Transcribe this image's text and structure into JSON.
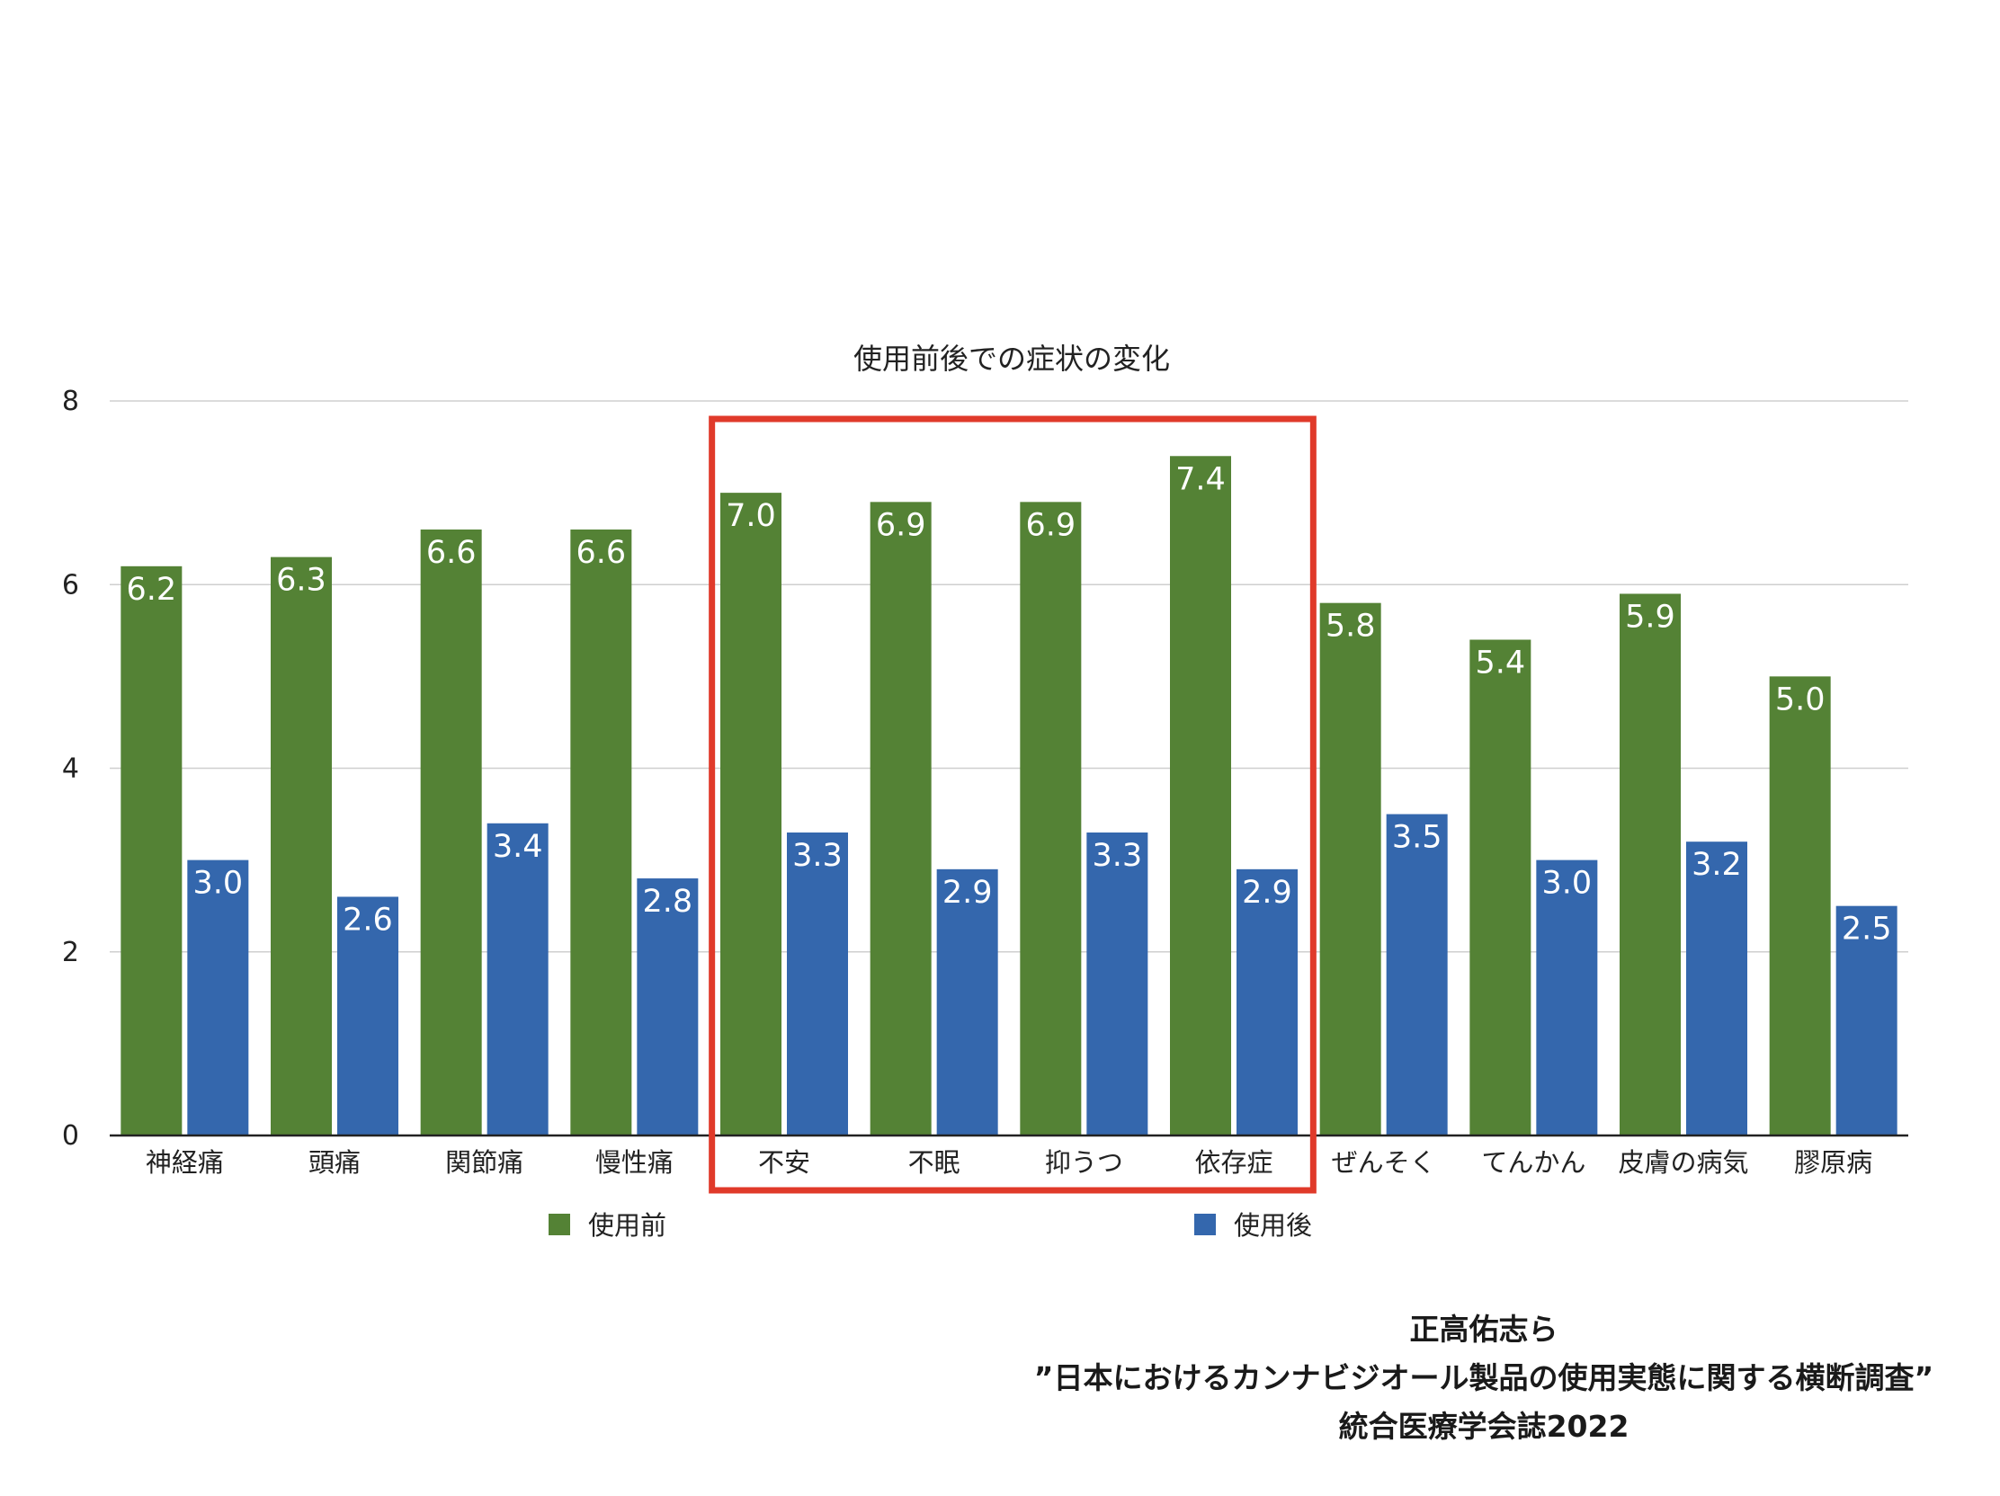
{
  "chart_data": {
    "type": "bar",
    "title": "使用前後での症状の変化",
    "categories": [
      "神経痛",
      "頭痛",
      "関節痛",
      "慢性痛",
      "不安",
      "不眠",
      "抑うつ",
      "依存症",
      "ぜんそく",
      "てんかん",
      "皮膚の病気",
      "膠原病"
    ],
    "series": [
      {
        "name": "使用前",
        "color": "#548235",
        "values": [
          6.2,
          6.3,
          6.6,
          6.6,
          7.0,
          6.9,
          6.9,
          7.4,
          5.8,
          5.4,
          5.9,
          5.0
        ],
        "labels": [
          "6.2",
          "6.3",
          "6.6",
          "6.6",
          "7.0",
          "6.9",
          "6.9",
          "7.4",
          "5.8",
          "5.4",
          "5.9",
          "5.0"
        ]
      },
      {
        "name": "使用後",
        "color": "#3467ad",
        "values": [
          3.0,
          2.6,
          3.4,
          2.8,
          3.3,
          2.9,
          3.3,
          2.9,
          3.5,
          3.0,
          3.2,
          2.5
        ],
        "labels": [
          "3.0",
          "2.6",
          "3.4",
          "2.8",
          "3.3",
          "2.9",
          "3.3",
          "2.9",
          "3.5",
          "3.0",
          "3.2",
          "2.5"
        ]
      }
    ],
    "y_ticks": [
      "0",
      "2",
      "4",
      "6",
      "8"
    ],
    "ylim": [
      0,
      8
    ],
    "grid": true,
    "legend_position": "bottom",
    "highlight": {
      "categories": [
        "不安",
        "不眠",
        "抑うつ",
        "依存症"
      ],
      "color": "#e03a2a"
    }
  },
  "citation": {
    "line1": "正高佑志ら",
    "line2": "”日本におけるカンナビジオール製品の使用実態に関する横断調査”",
    "line3": "統合医療学会誌2022"
  }
}
